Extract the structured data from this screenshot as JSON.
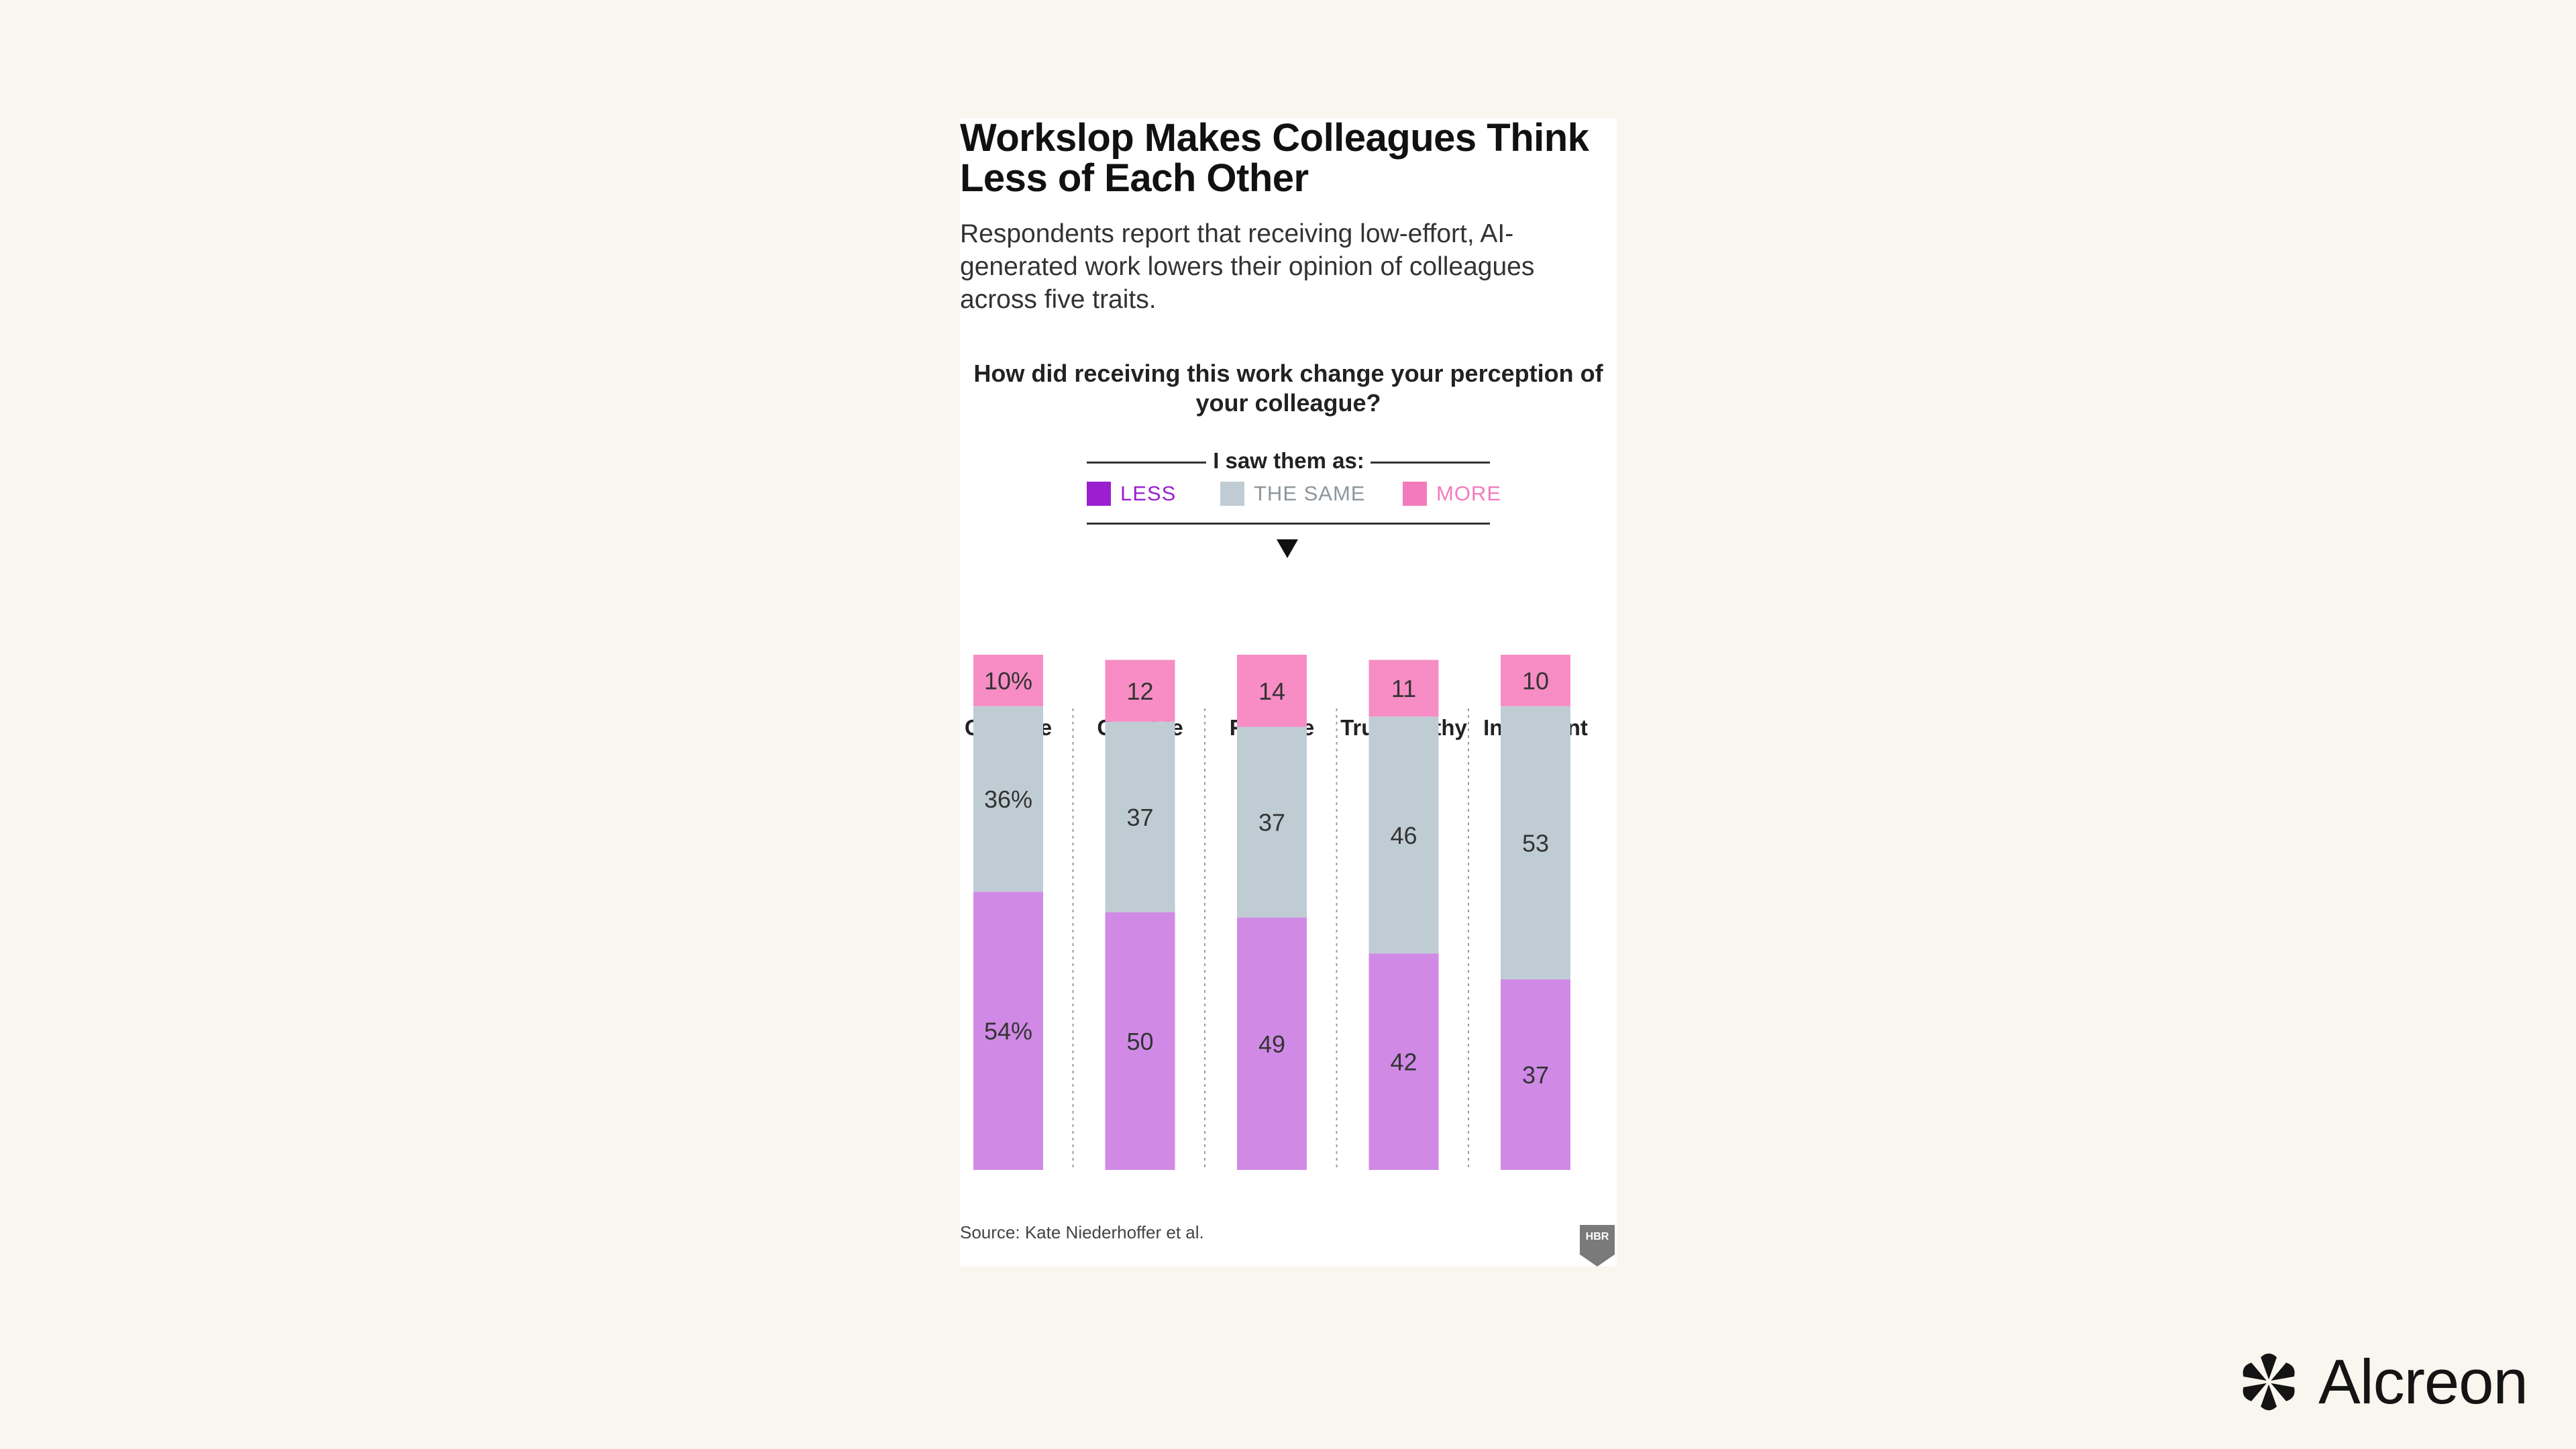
{
  "title": "Workslop Makes Colleagues Think Less of Each Other",
  "subtitle": "Respondents report that receiving low-effort, AI-generated work lowers their opinion of colleagues across five traits.",
  "source": "Source: Kate Niederhoffer et al.",
  "badge_text": "HBR",
  "brand": {
    "name": "Alcreon",
    "icon": "flower-logo-icon"
  },
  "colors": {
    "background": "#f9f5ef",
    "less": "#d08ae6",
    "same": "#c0ccd4",
    "more": "#f78dc4",
    "less_legend": "#9b1fd0",
    "more_legend": "#f37bbd"
  },
  "chart_data": {
    "type": "bar",
    "stacked": true,
    "question": "How did receiving this work change your perception of your colleague?",
    "legend_caption": "I saw them as:",
    "categories": [
      "Creative",
      "Capable",
      "Reliable",
      "Trustworthy",
      "Intelligent"
    ],
    "series": [
      {
        "name": "LESS",
        "values": [
          54,
          50,
          49,
          42,
          37
        ],
        "labels": [
          "54%",
          "50",
          "49",
          "42",
          "37"
        ]
      },
      {
        "name": "THE SAME",
        "values": [
          36,
          37,
          37,
          46,
          53
        ],
        "labels": [
          "36%",
          "37",
          "37",
          "46",
          "53"
        ]
      },
      {
        "name": "MORE",
        "values": [
          10,
          12,
          14,
          11,
          10
        ],
        "labels": [
          "10%",
          "12",
          "14",
          "11",
          "10"
        ]
      }
    ],
    "ylim": [
      0,
      100
    ]
  }
}
